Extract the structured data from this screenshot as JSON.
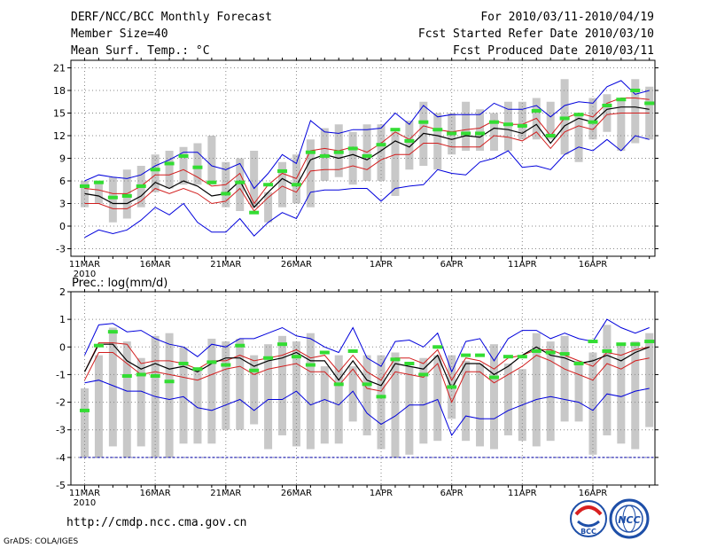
{
  "header": {
    "title": "DERF/NCC/BCC Monthly Forecast",
    "member_size": "Member Size=40",
    "variable": "Mean Surf. Temp.: °C",
    "period": "For 2010/03/11-2010/04/19",
    "started": "Fcst Started Refer Date 2010/03/10",
    "produced": "Fcst Produced Date 2010/03/11"
  },
  "footer": {
    "url": "http://cmdp.ncc.cma.gov.cn",
    "credit": "GrADS: COLA/IGES"
  },
  "logos": {
    "bcc": "BCC",
    "ncc": "NCC"
  },
  "colors": {
    "box": "#c8c8c8",
    "median": "#000000",
    "quartile": "#d21e1e",
    "extreme": "#0000dc",
    "mean": "#33dd33",
    "grid": "#888888",
    "baseline": "#0000aa"
  },
  "chart_data": [
    {
      "type": "box-plot time series",
      "title": "Mean Surf. Temp.: °C",
      "ylabel": "°C",
      "ylim": [
        -4,
        22
      ],
      "yticks": [
        -3,
        0,
        3,
        6,
        9,
        12,
        15,
        18,
        21
      ],
      "xticks": [
        {
          "day": 1,
          "label": "11MAR"
        },
        {
          "day": 6,
          "label": "16MAR"
        },
        {
          "day": 11,
          "label": "21MAR"
        },
        {
          "day": 16,
          "label": "26MAR"
        },
        {
          "day": 22,
          "label": "1APR"
        },
        {
          "day": 27,
          "label": "6APR"
        },
        {
          "day": 32,
          "label": "11APR"
        },
        {
          "day": 37,
          "label": "16APR"
        }
      ],
      "year_label": "2010",
      "box_low": [
        2.5,
        3.0,
        0.5,
        1.0,
        2.5,
        4.5,
        5.0,
        5.5,
        5.5,
        5.5,
        2.5,
        2.0,
        2.5,
        0.5,
        2.5,
        3.0,
        2.5,
        6.0,
        6.5,
        5.5,
        6.0,
        6.0,
        4.0,
        7.5,
        8.0,
        7.5,
        9.5,
        10.0,
        10.0,
        10.0,
        10.0,
        11.5,
        11.5,
        11.5,
        9.5,
        8.5,
        11.5,
        12.5,
        10.0,
        11.0,
        11.5
      ],
      "box_high": [
        6.0,
        6.0,
        6.5,
        7.5,
        8.0,
        9.5,
        10.0,
        10.5,
        11.0,
        12.0,
        8.5,
        9.0,
        10.0,
        4.5,
        8.5,
        9.5,
        11.5,
        13.0,
        13.5,
        12.5,
        13.5,
        13.5,
        12.5,
        14.0,
        16.5,
        15.0,
        15.0,
        16.5,
        15.5,
        15.0,
        16.5,
        16.5,
        17.0,
        16.5,
        19.5,
        15.0,
        17.0,
        17.5,
        17.0,
        19.5,
        18.5
      ],
      "mean": [
        5.3,
        5.8,
        3.8,
        4.0,
        5.3,
        7.5,
        8.3,
        9.3,
        7.8,
        5.8,
        4.3,
        5.8,
        1.8,
        5.5,
        7.3,
        5.5,
        9.8,
        9.3,
        9.8,
        10.3,
        9.3,
        10.8,
        12.8,
        11.3,
        13.8,
        12.8,
        12.3,
        12.3,
        12.3,
        13.8,
        13.5,
        13.3,
        15.3,
        12.0,
        14.3,
        14.8,
        13.8,
        16.0,
        16.8,
        18.0,
        16.3
      ],
      "p90": [
        6.0,
        6.8,
        6.5,
        6.3,
        6.8,
        8.0,
        8.8,
        9.8,
        9.8,
        8.0,
        7.5,
        8.3,
        5.0,
        7.0,
        9.5,
        8.3,
        14.0,
        12.5,
        12.3,
        12.8,
        12.8,
        13.0,
        15.0,
        13.5,
        16.0,
        14.5,
        14.8,
        14.8,
        14.8,
        16.3,
        15.5,
        15.5,
        16.0,
        14.5,
        16.0,
        16.5,
        16.3,
        18.5,
        19.3,
        17.5,
        18.0
      ],
      "q75": [
        5.0,
        4.8,
        4.3,
        4.3,
        5.3,
        6.8,
        6.8,
        7.5,
        6.5,
        5.3,
        5.5,
        7.0,
        3.0,
        5.5,
        7.0,
        6.3,
        10.0,
        10.3,
        10.0,
        10.5,
        9.8,
        11.0,
        12.5,
        11.5,
        13.3,
        12.8,
        12.5,
        12.8,
        13.0,
        14.0,
        13.5,
        13.5,
        14.3,
        12.0,
        14.3,
        15.0,
        14.5,
        16.3,
        17.0,
        17.0,
        16.8
      ],
      "median": [
        4.3,
        4.0,
        3.0,
        3.0,
        4.0,
        5.8,
        5.0,
        6.0,
        5.3,
        4.0,
        4.3,
        6.0,
        2.5,
        4.5,
        6.3,
        5.3,
        8.8,
        9.5,
        9.0,
        9.5,
        8.8,
        10.0,
        11.3,
        10.5,
        12.3,
        12.0,
        11.5,
        12.0,
        11.8,
        13.0,
        12.8,
        12.3,
        13.5,
        11.0,
        13.3,
        14.3,
        13.8,
        15.5,
        15.8,
        15.8,
        15.5
      ],
      "q25": [
        3.0,
        3.0,
        2.3,
        2.3,
        3.3,
        5.0,
        4.3,
        5.0,
        4.3,
        3.0,
        3.3,
        5.0,
        2.0,
        3.8,
        5.3,
        4.5,
        7.3,
        7.5,
        7.5,
        8.0,
        7.5,
        8.8,
        9.5,
        9.5,
        11.0,
        11.0,
        10.5,
        10.5,
        10.5,
        12.0,
        11.8,
        11.3,
        12.5,
        10.3,
        12.5,
        13.3,
        12.8,
        14.8,
        15.0,
        15.0,
        15.0
      ],
      "p10": [
        -1.5,
        -0.5,
        -1.0,
        -0.5,
        0.8,
        2.5,
        1.5,
        3.0,
        0.5,
        -0.8,
        -0.8,
        1.0,
        -1.3,
        0.5,
        1.8,
        1.0,
        4.5,
        4.8,
        4.8,
        5.0,
        5.0,
        3.3,
        5.0,
        5.3,
        5.5,
        7.5,
        7.0,
        6.8,
        8.5,
        9.0,
        10.0,
        7.8,
        8.0,
        7.5,
        9.5,
        10.5,
        10.0,
        11.5,
        10.0,
        12.0,
        11.5
      ]
    },
    {
      "type": "box-plot time series",
      "title": "Prec.: log(mm/d)",
      "ylabel": "log(mm/d)",
      "ylim": [
        -5,
        2
      ],
      "yticks": [
        -5,
        -4,
        -3,
        -2,
        -1,
        0,
        1,
        2
      ],
      "xticks": [
        {
          "day": 1,
          "label": "11MAR"
        },
        {
          "day": 6,
          "label": "16MAR"
        },
        {
          "day": 11,
          "label": "21MAR"
        },
        {
          "day": 16,
          "label": "26MAR"
        },
        {
          "day": 22,
          "label": "1APR"
        },
        {
          "day": 27,
          "label": "6APR"
        },
        {
          "day": 32,
          "label": "11APR"
        },
        {
          "day": 37,
          "label": "16APR"
        }
      ],
      "year_label": "2010",
      "baseline": -4,
      "box_low": [
        -4,
        -4,
        -3.6,
        -4,
        -3.6,
        -4,
        -4,
        -3.5,
        -3.5,
        -3.5,
        -3,
        -3,
        -2.8,
        -3.7,
        -3.2,
        -3.6,
        -3.7,
        -3.5,
        -3.5,
        -2.7,
        -3.2,
        -3.7,
        -4,
        -3.9,
        -3.5,
        -3.4,
        -2.6,
        -3.4,
        -3.6,
        -3.7,
        -3.2,
        -3.4,
        -3.6,
        -3.4,
        -2.7,
        -2.7,
        -3.9,
        -3.2,
        -3.5,
        -3.7,
        -2.9
      ],
      "box_high": [
        -1.5,
        -0.3,
        0.7,
        0.2,
        -0.4,
        0.4,
        0.5,
        0,
        -0.8,
        0.3,
        0.2,
        0.3,
        -0.3,
        0.1,
        0.4,
        0.2,
        0.5,
        -0.7,
        -0.3,
        -0.7,
        -0.3,
        -0.3,
        -0.2,
        -0.7,
        -0.4,
        -0.3,
        -0.3,
        -0.5,
        -0.6,
        0.1,
        -0.6,
        -0.8,
        0.5,
        0.2,
        0.4,
        -0.5,
        -0.2,
        0.8,
        0.1,
        0.2,
        0.5
      ],
      "mean": [
        -2.3,
        0.05,
        0.55,
        -1.05,
        -1.0,
        -1.05,
        -1.25,
        -0.6,
        -0.8,
        -0.55,
        -0.65,
        0.05,
        -0.85,
        -0.4,
        0.1,
        -0.35,
        -0.65,
        -0.2,
        -1.35,
        -0.15,
        -1.35,
        -1.8,
        -0.45,
        -0.6,
        -1.0,
        0,
        -1.45,
        -0.3,
        -0.3,
        -1.1,
        -0.35,
        -0.35,
        -0.15,
        -0.2,
        -0.25,
        -0.6,
        0.2,
        -0.15,
        0.1,
        0.1,
        0.2
      ],
      "p90": [
        -0.3,
        0.8,
        0.85,
        0.55,
        0.6,
        0.3,
        0.1,
        0.0,
        -0.35,
        0.1,
        0.0,
        0.3,
        0.3,
        0.5,
        0.7,
        0.4,
        0.3,
        0.0,
        -0.2,
        0.7,
        -0.4,
        -0.7,
        0.2,
        0.25,
        0.0,
        0.5,
        -0.9,
        0.2,
        0.3,
        -0.5,
        0.3,
        0.6,
        0.6,
        0.3,
        0.5,
        0.3,
        0.2,
        1.0,
        0.7,
        0.5,
        0.7
      ],
      "q75": [
        -0.9,
        0.15,
        0.15,
        0.1,
        -0.6,
        -0.5,
        -0.5,
        -0.6,
        -0.8,
        -0.5,
        -0.5,
        -0.3,
        -0.5,
        -0.4,
        -0.3,
        -0.1,
        -0.4,
        -0.3,
        -0.9,
        -0.3,
        -0.9,
        -1.2,
        -0.4,
        -0.4,
        -0.6,
        -0.1,
        -1.2,
        -0.4,
        -0.5,
        -0.8,
        -0.4,
        -0.3,
        -0.1,
        -0.1,
        -0.3,
        -0.5,
        -0.7,
        -0.2,
        -0.3,
        -0.1,
        0.0
      ],
      "median": [
        -0.9,
        0.1,
        0.1,
        -0.5,
        -0.8,
        -0.6,
        -0.8,
        -0.7,
        -0.9,
        -0.6,
        -0.4,
        -0.4,
        -0.7,
        -0.5,
        -0.4,
        -0.2,
        -0.5,
        -0.5,
        -1.2,
        -0.5,
        -1.2,
        -1.4,
        -0.6,
        -0.7,
        -0.8,
        -0.3,
        -1.5,
        -0.6,
        -0.6,
        -1.0,
        -0.7,
        -0.3,
        0.0,
        -0.3,
        -0.4,
        -0.6,
        -0.5,
        -0.3,
        -0.5,
        -0.2,
        0.0
      ],
      "q25": [
        -1.2,
        -0.2,
        -0.2,
        -0.6,
        -1.0,
        -0.9,
        -1.0,
        -1.1,
        -1.2,
        -1.0,
        -0.8,
        -0.7,
        -1.0,
        -0.8,
        -0.7,
        -0.6,
        -0.9,
        -0.9,
        -1.4,
        -0.8,
        -1.5,
        -1.6,
        -0.9,
        -1.0,
        -1.1,
        -0.6,
        -2.0,
        -0.9,
        -0.9,
        -1.3,
        -1.0,
        -0.7,
        -0.3,
        -0.5,
        -0.8,
        -1.0,
        -1.2,
        -0.6,
        -0.8,
        -0.5,
        -0.4
      ],
      "p10": [
        -1.3,
        -1.2,
        -1.4,
        -1.6,
        -1.6,
        -1.8,
        -1.9,
        -1.8,
        -2.2,
        -2.3,
        -2.1,
        -1.9,
        -2.3,
        -1.9,
        -1.9,
        -1.6,
        -2.1,
        -1.9,
        -2.1,
        -1.6,
        -2.4,
        -2.8,
        -2.5,
        -2.1,
        -2.1,
        -1.9,
        -3.2,
        -2.5,
        -2.6,
        -2.6,
        -2.3,
        -2.1,
        -1.9,
        -1.8,
        -1.9,
        -2.0,
        -2.3,
        -1.7,
        -1.8,
        -1.6,
        -1.5
      ]
    }
  ]
}
